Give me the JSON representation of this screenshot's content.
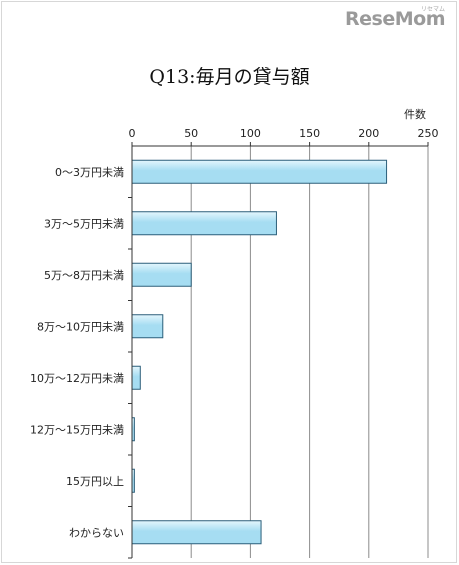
{
  "logo": {
    "text": "ReseMom",
    "ruby": "リセマム"
  },
  "chart_data": {
    "type": "bar",
    "orientation": "horizontal",
    "title": "Q13:毎月の貸与額",
    "unit_label": "件数",
    "categories": [
      "0～3万円未満",
      "3万～5万円未満",
      "5万～8万円未満",
      "8万～10万円未満",
      "10万～12万円未満",
      "12万～15万円未満",
      "15万円以上",
      "わからない"
    ],
    "values": [
      215,
      122,
      50,
      26,
      7,
      2,
      2,
      109
    ],
    "xlim": [
      0,
      250
    ],
    "ticks": [
      0,
      50,
      100,
      150,
      200,
      250
    ],
    "grid": true,
    "bar_color": "#a6ddf2",
    "bar_highlight": "#e4f6fd",
    "bar_edge": "#2b5f7a"
  }
}
